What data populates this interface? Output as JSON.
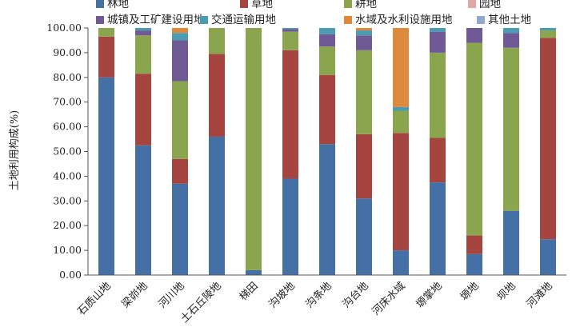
{
  "chart_data": {
    "type": "bar",
    "stacked": true,
    "ylabel": "土地利用构成(%)",
    "ylim": [
      0,
      100
    ],
    "yticks": [
      "0.00",
      "10.00",
      "20.00",
      "30.00",
      "40.00",
      "50.00",
      "60.00",
      "70.00",
      "80.00",
      "90.00",
      "100.00"
    ],
    "legend_position": "top",
    "categories": [
      "石质山地",
      "梁峁地",
      "河川地",
      "土石丘陵地",
      "梯田",
      "沟坡地",
      "沟条地",
      "沟台地",
      "河床水域",
      "塬掌地",
      "塬地",
      "坝地",
      "河滩地"
    ],
    "series": [
      {
        "name": "林地",
        "color": "#4470a6",
        "values": [
          80,
          52.5,
          37,
          56,
          2,
          39,
          53,
          31,
          10,
          37.5,
          8.5,
          26,
          14.5
        ]
      },
      {
        "name": "草地",
        "color": "#a64540",
        "values": [
          16.5,
          29,
          10,
          33.5,
          0,
          52,
          28,
          26,
          47.5,
          18,
          7.5,
          0,
          81.5
        ]
      },
      {
        "name": "耕地",
        "color": "#8aa54e",
        "values": [
          3.5,
          15.5,
          31.5,
          10.5,
          98,
          7.5,
          11.5,
          34,
          9,
          34.5,
          78,
          66,
          3
        ]
      },
      {
        "name": "园地",
        "color": "#e0a8a6",
        "values": [
          0,
          0,
          0,
          0,
          0,
          0,
          0,
          0,
          0,
          0,
          0,
          0,
          0
        ]
      },
      {
        "name": "城镇及工矿建设用地",
        "color": "#6f5a96",
        "values": [
          0,
          2,
          16.5,
          0,
          0,
          1,
          5,
          6,
          0,
          8.5,
          6,
          6,
          0
        ]
      },
      {
        "name": "交通运输用地",
        "color": "#4b9bb1",
        "values": [
          0,
          1,
          3,
          0,
          0,
          0.5,
          2.5,
          2,
          1.5,
          1.5,
          0,
          2,
          1
        ]
      },
      {
        "name": "水域及水利设施用地",
        "color": "#dd8a3c",
        "values": [
          0,
          0,
          2,
          0,
          0,
          0,
          0,
          1,
          32,
          0,
          0,
          0,
          0
        ]
      },
      {
        "name": "其他土地",
        "color": "#90a8cc",
        "values": [
          0,
          0,
          0,
          0,
          0,
          0,
          0,
          0,
          0,
          0,
          0,
          0,
          0
        ]
      }
    ]
  }
}
